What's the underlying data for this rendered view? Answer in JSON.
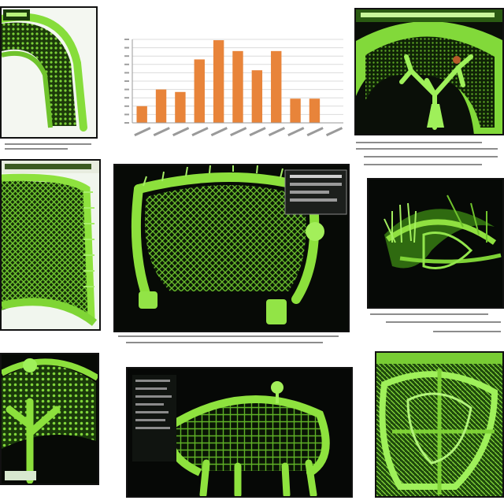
{
  "chart_data": {
    "type": "bar",
    "title": "",
    "xlabel": "",
    "ylabel": "",
    "categories": [
      "",
      "",
      "",
      "",
      "",
      "",
      "",
      "",
      "",
      "",
      ""
    ],
    "values": [
      2,
      4,
      3.7,
      7.6,
      9.9,
      8.6,
      6.3,
      8.6,
      2.9,
      2.9,
      0
    ],
    "ylim": [
      0,
      10
    ],
    "grid": true,
    "bar_color": "#e8843a"
  },
  "colors": {
    "bright_green": "#8be43c",
    "dark_green": "#2f6a10",
    "panel_black": "#050805",
    "bar_orange": "#e8843a"
  }
}
